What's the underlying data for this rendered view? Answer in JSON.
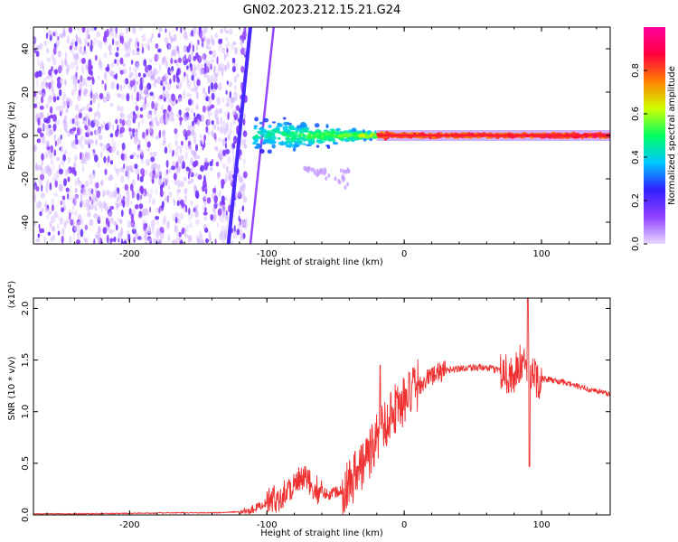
{
  "title": "GN02.2023.212.15.21.G24",
  "colors": {
    "snr_line": "#ee3030",
    "axis": "#000000",
    "background": "#ffffff"
  },
  "chart_data": [
    {
      "type": "heatmap",
      "xlabel": "Height of straight line (km)",
      "ylabel": "Frequency (Hz)",
      "xlim": [
        -270,
        150
      ],
      "ylim": [
        -50,
        50
      ],
      "x_ticks": [
        -200,
        -100,
        0,
        100
      ],
      "x_tick_labels": [
        "-200",
        "-100",
        "0",
        "100"
      ],
      "y_ticks": [
        -40,
        -20,
        0,
        20,
        40
      ],
      "y_tick_labels": [
        "-40",
        "-20",
        "0",
        "20",
        "40"
      ],
      "colorbar": {
        "label": "Normalized spectral amplitude",
        "range": [
          0,
          1
        ],
        "ticks": [
          0,
          0.2,
          0.4,
          0.6,
          0.8
        ],
        "tick_labels": [
          "0.0",
          "0.2",
          "0.4",
          "0.6",
          "0.8"
        ],
        "colormap": [
          "#e8d8ff",
          "#9040ff",
          "#3020ff",
          "#00c8ff",
          "#00ff60",
          "#d0ff00",
          "#ff8000",
          "#ff0040",
          "#ff00a0"
        ]
      },
      "noise_region_x": [
        -270,
        -115
      ],
      "oblique_streaks": [
        {
          "x_at_top": -112,
          "x_at_bottom": -128
        },
        {
          "x_at_top": -95,
          "x_at_bottom": -112
        }
      ],
      "signal_trace": {
        "freq": 0,
        "start_x": -110,
        "end_x": 150,
        "spread_hz": [
          {
            "x": -110,
            "spread": 10
          },
          {
            "x": -90,
            "spread": 10
          },
          {
            "x": -60,
            "spread": 7
          },
          {
            "x": -40,
            "spread": 4
          },
          {
            "x": -20,
            "spread": 2
          },
          {
            "x": 0,
            "spread": 1
          },
          {
            "x": 150,
            "spread": 1
          }
        ]
      }
    },
    {
      "type": "line",
      "xlabel": "Height of straight line (km)",
      "ylabel": "SNR (10 * v/v)",
      "scale_label": "(x10⁴)",
      "xlim": [
        -270,
        150
      ],
      "ylim": [
        0,
        2.1
      ],
      "x_ticks": [
        -200,
        -100,
        0,
        100
      ],
      "x_tick_labels": [
        "-200",
        "-100",
        "0",
        "100"
      ],
      "y_ticks": [
        0,
        0.5,
        1.0,
        1.5,
        2.0
      ],
      "y_tick_labels": [
        "0.0",
        "0.5",
        "1.0",
        "1.5",
        "2.0"
      ],
      "series": [
        {
          "x": [
            -270,
            -240,
            -200,
            -170,
            -140,
            -120,
            -110,
            -100,
            -90,
            -80,
            -72,
            -65,
            -55,
            -45,
            -40,
            -35,
            -30,
            -25,
            -20,
            -15,
            -10,
            -5,
            0,
            10,
            20,
            30,
            40,
            50,
            60,
            70,
            80,
            85,
            90,
            92,
            95,
            100,
            110,
            120,
            130,
            140,
            150
          ],
          "y": [
            0.01,
            0.01,
            0.015,
            0.02,
            0.02,
            0.03,
            0.06,
            0.12,
            0.18,
            0.3,
            0.35,
            0.25,
            0.2,
            0.25,
            0.32,
            0.4,
            0.5,
            0.6,
            0.75,
            0.85,
            1.0,
            1.05,
            1.1,
            1.25,
            1.35,
            1.4,
            1.42,
            1.43,
            1.42,
            1.4,
            1.35,
            1.45,
            1.5,
            1.38,
            1.35,
            1.32,
            1.3,
            1.27,
            1.23,
            1.2,
            1.17
          ]
        }
      ]
    }
  ]
}
